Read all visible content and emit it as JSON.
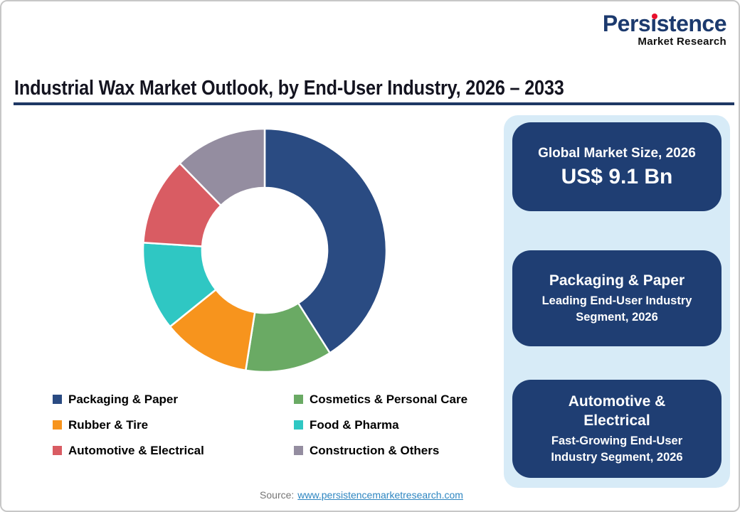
{
  "logo": {
    "brand": "Persistence",
    "tagline": "Market Research"
  },
  "title": "Industrial Wax Market Outlook, by End-User Industry, 2026 – 2033",
  "chart_data": {
    "type": "pie",
    "variant": "donut",
    "title": "Industrial Wax Market Outlook, by End-User Industry, 2026 – 2033",
    "categories": [
      "Packaging & Paper",
      "Cosmetics & Personal Care",
      "Rubber & Tire",
      "Food & Pharma",
      "Automotive & Electrical",
      "Construction & Others"
    ],
    "values": [
      41,
      11.5,
      11.7,
      11.8,
      11.7,
      12.3
    ],
    "values_unit": "% share, estimated from arc angles",
    "colors": [
      "#2A4B82",
      "#6AAA64",
      "#F7941D",
      "#2FC7C3",
      "#D95C63",
      "#948DA0"
    ],
    "start_angle": 0,
    "direction": "clockwise",
    "inner_radius_ratio": 0.515,
    "legend_position": "bottom",
    "legend_columns": 2
  },
  "cards": [
    {
      "title": "Global Market Size, 2026",
      "value": "US$ 9.1 Bn"
    },
    {
      "title": "Packaging & Paper",
      "subtitle": "Leading End-User Industry Segment, 2026"
    },
    {
      "title": "Automotive & Electrical",
      "subtitle": "Fast-Growing End-User Industry Segment, 2026"
    }
  ],
  "source": {
    "label": "Source:",
    "link": "www.persistencemarketresearch.com"
  },
  "colors": {
    "card_bg": "#1F3E73",
    "panel_bg": "#D7EBF7",
    "title_underline": "#1F3864",
    "logo_blue": "#1C3A6E",
    "logo_dot_red": "#E8112D",
    "link_blue": "#2E86C1"
  }
}
